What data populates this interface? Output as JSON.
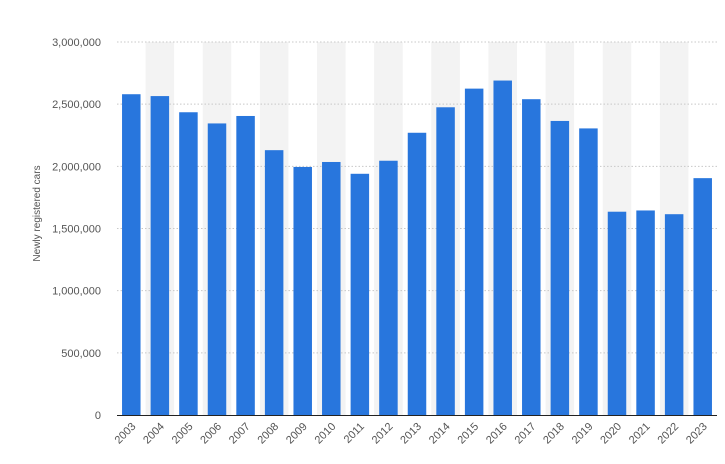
{
  "chart_data": {
    "type": "bar",
    "title": "",
    "xlabel": "",
    "ylabel": "Newly registered cars",
    "categories": [
      "2003",
      "2004",
      "2005",
      "2006",
      "2007",
      "2008",
      "2009",
      "2010",
      "2011",
      "2012",
      "2013",
      "2014",
      "2015",
      "2016",
      "2017",
      "2018",
      "2019",
      "2020",
      "2021",
      "2022",
      "2023"
    ],
    "values": [
      2580000,
      2565000,
      2435000,
      2345000,
      2405000,
      2130000,
      1995000,
      2035000,
      1940000,
      2045000,
      2270000,
      2475000,
      2625000,
      2690000,
      2540000,
      2365000,
      2305000,
      1635000,
      1645000,
      1615000,
      1905000
    ],
    "ylim": [
      0,
      3000000
    ],
    "yticks": [
      0,
      500000,
      1000000,
      1500000,
      2000000,
      2500000,
      3000000
    ],
    "ytick_labels": [
      "0",
      "500,000",
      "1,000,000",
      "1,500,000",
      "2,000,000",
      "2,500,000",
      "3,000,000"
    ],
    "grid": true,
    "colors": {
      "bar": "#2876dd",
      "grid": "#c8c8c8",
      "band": "#f3f3f3",
      "axis": "#222222"
    }
  }
}
